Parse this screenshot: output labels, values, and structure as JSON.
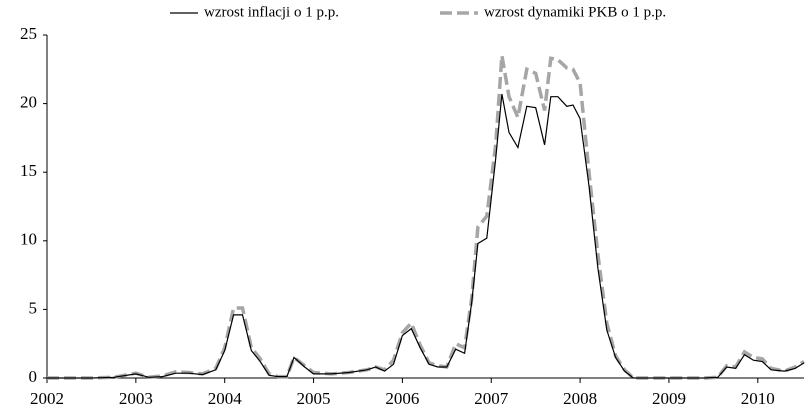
{
  "chart_data": {
    "type": "line",
    "x": [
      2002.0,
      2002.25,
      2002.5,
      2002.75,
      2003.0,
      2003.15,
      2003.3,
      2003.45,
      2003.6,
      2003.75,
      2003.9,
      2004.0,
      2004.1,
      2004.2,
      2004.3,
      2004.4,
      2004.5,
      2004.6,
      2004.7,
      2004.78,
      2004.9,
      2005.0,
      2005.2,
      2005.4,
      2005.6,
      2005.7,
      2005.8,
      2005.9,
      2006.0,
      2006.1,
      2006.2,
      2006.3,
      2006.4,
      2006.5,
      2006.6,
      2006.7,
      2006.78,
      2006.85,
      2006.95,
      2007.05,
      2007.12,
      2007.2,
      2007.3,
      2007.4,
      2007.5,
      2007.6,
      2007.67,
      2007.75,
      2007.85,
      2007.92,
      2008.0,
      2008.1,
      2008.2,
      2008.3,
      2008.4,
      2008.5,
      2008.6,
      2008.8,
      2009.0,
      2009.2,
      2009.4,
      2009.55,
      2009.65,
      2009.75,
      2009.85,
      2009.95,
      2010.05,
      2010.15,
      2010.3,
      2010.42,
      2010.52
    ],
    "series": [
      {
        "name": "wzrost inflacji o 1 p.p.",
        "color": "#000000",
        "style": "solid",
        "values": [
          0,
          0,
          0,
          0.05,
          0.3,
          0.05,
          0.1,
          0.35,
          0.35,
          0.25,
          0.6,
          2.0,
          4.6,
          4.6,
          2.0,
          1.2,
          0.2,
          0.1,
          0.1,
          1.5,
          0.8,
          0.3,
          0.3,
          0.4,
          0.6,
          0.8,
          0.5,
          1.0,
          3.1,
          3.6,
          2.2,
          1.0,
          0.8,
          0.8,
          2.1,
          1.8,
          5.5,
          9.8,
          10.2,
          16.0,
          20.7,
          17.9,
          16.8,
          19.8,
          19.7,
          17.0,
          20.5,
          20.5,
          19.8,
          19.9,
          18.9,
          14.0,
          8.0,
          3.5,
          1.5,
          0.5,
          0,
          0,
          0,
          0,
          0,
          0.05,
          0.8,
          0.7,
          1.7,
          1.3,
          1.2,
          0.6,
          0.5,
          0.7,
          1.1
        ]
      },
      {
        "name": "wzrost dynamiki PKB o 1 p.p.",
        "color": "#a6a6a6",
        "style": "dashed",
        "values": [
          0,
          0,
          0,
          0.05,
          0.35,
          0.05,
          0.15,
          0.45,
          0.4,
          0.3,
          0.7,
          2.2,
          5.1,
          5.1,
          2.2,
          1.4,
          0.3,
          0.1,
          0.1,
          1.5,
          0.9,
          0.4,
          0.3,
          0.4,
          0.6,
          0.8,
          0.6,
          1.3,
          3.3,
          4.0,
          2.4,
          1.1,
          0.9,
          0.8,
          2.5,
          2.2,
          5.8,
          11.0,
          11.8,
          17.0,
          23.5,
          20.5,
          19.0,
          22.5,
          22.2,
          19.5,
          23.3,
          23.2,
          22.6,
          22.5,
          21.5,
          15.0,
          9.0,
          4.0,
          1.6,
          0.6,
          0,
          0,
          0,
          0,
          0,
          0.05,
          0.9,
          0.8,
          1.9,
          1.5,
          1.4,
          0.7,
          0.5,
          0.8,
          1.2
        ]
      }
    ],
    "xlim": [
      2002,
      2010.52
    ],
    "xticks": [
      2002,
      2003,
      2004,
      2005,
      2006,
      2007,
      2008,
      2009,
      2010
    ],
    "ylim": [
      0,
      25
    ],
    "yticks": [
      0,
      5,
      10,
      15,
      20,
      25
    ],
    "grid": false
  }
}
